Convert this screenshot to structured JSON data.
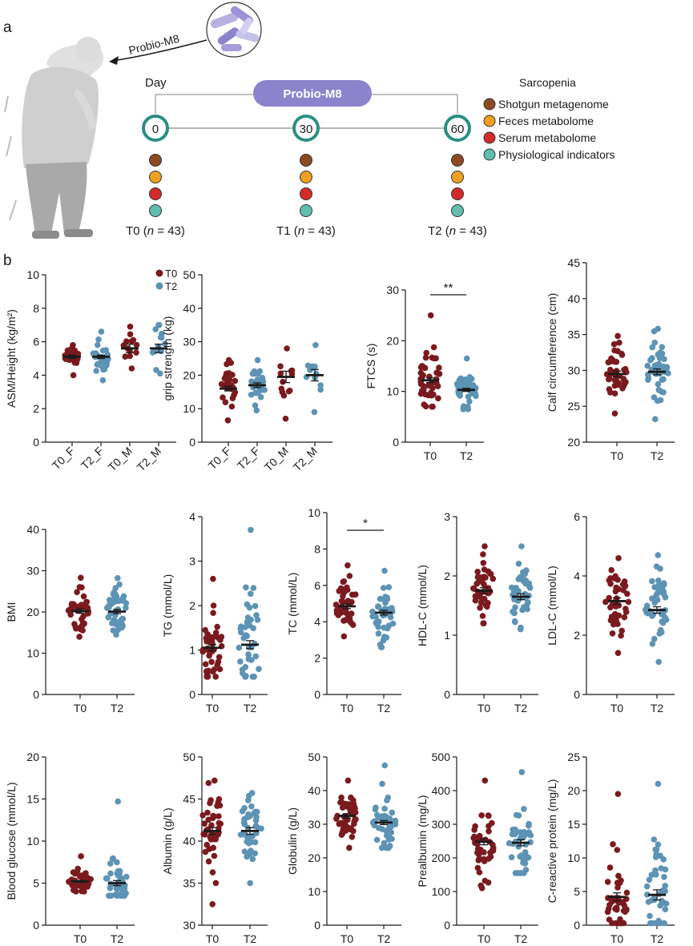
{
  "panel_a": {
    "label": "a",
    "arrow_label": "Probio-M8",
    "day_label": "Day",
    "bar_label": "Probio-M8",
    "days": [
      "0",
      "30",
      "60"
    ],
    "groups": [
      {
        "time": "T0",
        "n": "43"
      },
      {
        "time": "T1",
        "n": "43"
      },
      {
        "time": "T2",
        "n": "43"
      }
    ],
    "n_italic": "n",
    "legend_title": "Sarcopenia",
    "legend": [
      {
        "label": "Shotgun metagenome",
        "color": "#8b4a22"
      },
      {
        "label": "Feces metabolome",
        "color": "#f0a020"
      },
      {
        "label": "Serum metabolome",
        "color": "#d62a2a"
      },
      {
        "label": "Physiological indicators",
        "color": "#5fbfae"
      }
    ],
    "timeline_color": "#2a8f83",
    "bar_color": "#8b84cc"
  },
  "panel_b_label": "b",
  "colors": {
    "T0": "#7a1a1f",
    "T2": "#5d93b4"
  },
  "legend_b": {
    "T0": "T0",
    "T2": "T2"
  },
  "chart_data": [
    {
      "type": "scatter",
      "id": "asm",
      "ylabel": "ASM/Height (kg/m²)",
      "ylim": [
        0,
        10
      ],
      "ticks": [
        0,
        2,
        4,
        6,
        8,
        10
      ],
      "categories": [
        "T0_F",
        "T2_F",
        "T0_M",
        "T2_M"
      ],
      "means": [
        5.1,
        5.1,
        5.6,
        5.6
      ],
      "sems": [
        0.1,
        0.1,
        0.25,
        0.25
      ],
      "n": [
        30,
        30,
        13,
        13
      ],
      "ranges": [
        [
          4.0,
          5.8
        ],
        [
          3.7,
          6.6
        ],
        [
          4.4,
          6.9
        ],
        [
          4.1,
          7.0
        ]
      ],
      "annotation": ""
    },
    {
      "type": "scatter",
      "id": "grip",
      "ylabel": "grip strength (kg)",
      "ylim": [
        0,
        50
      ],
      "ticks": [
        0,
        10,
        20,
        30,
        40,
        50
      ],
      "categories": [
        "T0_F",
        "T2_F",
        "T0_M",
        "T2_M"
      ],
      "means": [
        16,
        17,
        19.5,
        20
      ],
      "sems": [
        0.7,
        0.7,
        1.7,
        1.7
      ],
      "n": [
        30,
        30,
        13,
        13
      ],
      "ranges": [
        [
          6.5,
          24.5
        ],
        [
          9.5,
          24.5
        ],
        [
          7,
          28
        ],
        [
          9,
          29
        ]
      ],
      "annotation": ""
    },
    {
      "type": "scatter",
      "id": "ftcs",
      "ylabel": "FTCS (s)",
      "ylim": [
        0,
        30
      ],
      "ticks": [
        0,
        10,
        20,
        30
      ],
      "categories": [
        "T0",
        "T2"
      ],
      "means": [
        12.2,
        10.3
      ],
      "sems": [
        0.45,
        0.3
      ],
      "n": [
        43,
        43
      ],
      "ranges": [
        [
          7,
          25
        ],
        [
          6.5,
          16.5
        ]
      ],
      "annotation": "**"
    },
    {
      "type": "scatter",
      "id": "calf",
      "ylabel": "Calf circumference (cm)",
      "ylim": [
        20,
        45
      ],
      "ticks": [
        20,
        25,
        30,
        35,
        40,
        45
      ],
      "categories": [
        "T0",
        "T2"
      ],
      "means": [
        29.5,
        29.8
      ],
      "sems": [
        0.4,
        0.4
      ],
      "n": [
        43,
        43
      ],
      "ranges": [
        [
          24,
          34.8
        ],
        [
          23.2,
          35.8
        ]
      ],
      "annotation": ""
    },
    {
      "type": "scatter",
      "id": "bmi",
      "ylabel": "BMI",
      "ylim": [
        0,
        40
      ],
      "ticks": [
        0,
        10,
        20,
        30,
        40
      ],
      "categories": [
        "T0",
        "T2"
      ],
      "means": [
        20.2,
        20.1
      ],
      "sems": [
        0.5,
        0.5
      ],
      "n": [
        43,
        43
      ],
      "ranges": [
        [
          14,
          28.3
        ],
        [
          14.5,
          28.2
        ]
      ],
      "annotation": ""
    },
    {
      "type": "scatter",
      "id": "tg",
      "ylabel": "TG (mmol/L)",
      "ylim": [
        0,
        4
      ],
      "ticks": [
        0,
        1,
        2,
        3,
        4
      ],
      "categories": [
        "T0",
        "T2"
      ],
      "means": [
        1.05,
        1.12
      ],
      "sems": [
        0.07,
        0.09
      ],
      "n": [
        43,
        43
      ],
      "ranges": [
        [
          0.4,
          2.6
        ],
        [
          0.4,
          3.7
        ]
      ],
      "annotation": ""
    },
    {
      "type": "scatter",
      "id": "tc",
      "ylabel": "TC (mmol/L)",
      "ylim": [
        0,
        10
      ],
      "ticks": [
        0,
        2,
        4,
        6,
        8,
        10
      ],
      "categories": [
        "T0",
        "T2"
      ],
      "means": [
        4.85,
        4.5
      ],
      "sems": [
        0.13,
        0.13
      ],
      "n": [
        43,
        43
      ],
      "ranges": [
        [
          3.2,
          7.1
        ],
        [
          2.6,
          6.8
        ]
      ],
      "annotation": "*"
    },
    {
      "type": "scatter",
      "id": "hdl",
      "ylabel": "HDL-C (mmol/L)",
      "ylim": [
        0,
        3
      ],
      "ticks": [
        0,
        1,
        2,
        3
      ],
      "categories": [
        "T0",
        "T2"
      ],
      "means": [
        1.75,
        1.65
      ],
      "sems": [
        0.05,
        0.05
      ],
      "n": [
        43,
        43
      ],
      "ranges": [
        [
          1.2,
          2.5
        ],
        [
          1.1,
          2.5
        ]
      ],
      "annotation": ""
    },
    {
      "type": "scatter",
      "id": "ldl",
      "ylabel": "LDL-C (mmol/L)",
      "ylim": [
        0,
        6
      ],
      "ticks": [
        0,
        2,
        4,
        6
      ],
      "categories": [
        "T0",
        "T2"
      ],
      "means": [
        3.15,
        2.85
      ],
      "sems": [
        0.11,
        0.11
      ],
      "n": [
        43,
        43
      ],
      "ranges": [
        [
          1.4,
          4.6
        ],
        [
          1.1,
          4.7
        ]
      ],
      "annotation": ""
    },
    {
      "type": "scatter",
      "id": "glu",
      "ylabel": "Blood glucose (mmol/L)",
      "ylim": [
        0,
        20
      ],
      "ticks": [
        0,
        5,
        10,
        15,
        20
      ],
      "categories": [
        "T0",
        "T2"
      ],
      "means": [
        5.2,
        5.0
      ],
      "sems": [
        0.12,
        0.3
      ],
      "n": [
        43,
        43
      ],
      "ranges": [
        [
          4.0,
          8.2
        ],
        [
          3.5,
          14.7
        ]
      ],
      "annotation": ""
    },
    {
      "type": "scatter",
      "id": "alb",
      "ylabel": "Albumin (g/L)",
      "ylim": [
        30,
        50
      ],
      "ticks": [
        30,
        35,
        40,
        45,
        50
      ],
      "categories": [
        "T0",
        "T2"
      ],
      "means": [
        41.2,
        41.2
      ],
      "sems": [
        0.4,
        0.4
      ],
      "n": [
        43,
        43
      ],
      "ranges": [
        [
          32.5,
          47.2
        ],
        [
          35,
          45.7
        ]
      ],
      "annotation": ""
    },
    {
      "type": "scatter",
      "id": "glob",
      "ylabel": "Globulin (g/L)",
      "ylim": [
        0,
        50
      ],
      "ticks": [
        0,
        10,
        20,
        30,
        40,
        50
      ],
      "categories": [
        "T0",
        "T2"
      ],
      "means": [
        32.5,
        30.5
      ],
      "sems": [
        0.65,
        0.6
      ],
      "n": [
        43,
        43
      ],
      "ranges": [
        [
          23,
          43
        ],
        [
          23,
          47.5
        ]
      ],
      "annotation": ""
    },
    {
      "type": "scatter",
      "id": "preal",
      "ylabel": "Prealbumin (mg/L)",
      "ylim": [
        0,
        500
      ],
      "ticks": [
        0,
        100,
        200,
        300,
        400,
        500
      ],
      "categories": [
        "T0",
        "T2"
      ],
      "means": [
        248,
        245
      ],
      "sems": [
        9,
        9
      ],
      "n": [
        43,
        43
      ],
      "ranges": [
        [
          110,
          430
        ],
        [
          155,
          455
        ]
      ],
      "annotation": ""
    },
    {
      "type": "scatter",
      "id": "crp",
      "ylabel": "C-reactive protein (mg/L)",
      "ylim": [
        0,
        25
      ],
      "ticks": [
        0,
        5,
        10,
        15,
        20,
        25
      ],
      "categories": [
        "T0",
        "T2"
      ],
      "means": [
        4.2,
        4.5
      ],
      "sems": [
        0.6,
        0.75
      ],
      "n": [
        43,
        43
      ],
      "ranges": [
        [
          0.3,
          19.5
        ],
        [
          0.3,
          21
        ]
      ],
      "annotation": ""
    }
  ]
}
